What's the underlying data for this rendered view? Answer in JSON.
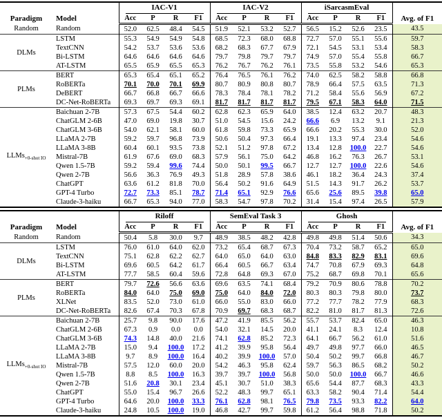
{
  "colors": {
    "best_llm_blue": "#0000EE",
    "avg_column_bg": "#e9f2ca",
    "text": "#000000"
  },
  "columns": {
    "paradigm": "Paradigm",
    "model": "Model",
    "avg": "Avg. of F1",
    "subcols": [
      "Acc",
      "P",
      "R",
      "F1"
    ]
  },
  "tables": [
    {
      "name": "results-table-iac",
      "datasets": [
        "IAC-V1",
        "IAC-V2",
        "iSarcasmEval"
      ],
      "sections": [
        {
          "paradigm": "Random",
          "sub": "",
          "rows": [
            {
              "model": "Random",
              "cells": [
                "52.0",
                "62.5",
                "48.4",
                "54.5",
                "51.9",
                "52.1",
                "53.2",
                "52.7",
                "56.5",
                "15.2",
                "52.6",
                "23.5",
                "43.5"
              ]
            }
          ]
        },
        {
          "paradigm": "DLMs",
          "sub": "",
          "rows": [
            {
              "model": "LSTM",
              "cells": [
                "55.3",
                "54.9",
                "54.9",
                "54.8",
                "68.5",
                "72.3",
                "68.0",
                "68.8",
                "72.7",
                "57.0",
                "55.1",
                "55.6",
                "59.7"
              ]
            },
            {
              "model": "TextCNN",
              "cells": [
                "54.2",
                "53.7",
                "53.6",
                "53.6",
                "68.2",
                "68.3",
                "67.7",
                "67.9",
                "72.1",
                "54.5",
                "53.1",
                "53.4",
                "58.3"
              ]
            },
            {
              "model": "Bi-LSTM",
              "cells": [
                "64.6",
                "64.6",
                "64.6",
                "64.6",
                "79.7",
                "79.8",
                "79.7",
                "79.7",
                "74.9",
                "57.0",
                "55.4",
                "55.8",
                "66.7"
              ]
            },
            {
              "model": "AT-LSTM",
              "cells": [
                "65.5",
                "65.9",
                "65.5",
                "65.3",
                "76.2",
                "76.7",
                "76.2",
                "76.1",
                "73.5",
                "55.8",
                "53.2",
                "54.6",
                "65.3"
              ]
            }
          ]
        },
        {
          "paradigm": "PLMs",
          "sub": "",
          "rows": [
            {
              "model": "BERT",
              "cells": [
                "65.3",
                "65.4",
                "65.1",
                "65.2",
                "76.4",
                "76.5",
                "76.1",
                "76.2",
                "74.0",
                "62.5",
                "58.2",
                "58.8",
                "66.8"
              ]
            },
            {
              "model": "RoBERTa",
              "cells": [
                "b:70.1",
                "b:70.0",
                "b:70.1",
                "b:69.9",
                "80.7",
                "80.9",
                "80.8",
                "80.7",
                "78.9",
                "66.4",
                "57.5",
                "63.5",
                "71.3"
              ]
            },
            {
              "model": "DeBERT",
              "cells": [
                "66.7",
                "66.8",
                "66.7",
                "66.6",
                "78.3",
                "78.4",
                "78.1",
                "78.2",
                "71.2",
                "58.4",
                "55.6",
                "56.9",
                "67.2"
              ]
            },
            {
              "model": "DC-Net-RoBERTa",
              "cells": [
                "69.3",
                "69.7",
                "69.3",
                "69.1",
                "b:81.7",
                "b:81.7",
                "b:81.7",
                "b:81.7",
                "b:79.5",
                "b:67.1",
                "b:58.3",
                "b:64.0",
                "b:71.5"
              ]
            }
          ]
        },
        {
          "paradigm": "LLMs",
          "sub": "+0-shot IO",
          "rows": [
            {
              "model": "Baichuan 2-7B",
              "cells": [
                "57.3",
                "67.5",
                "54.4",
                "60.2",
                "62.8",
                "62.3",
                "65.9",
                "64.0",
                "38.5",
                "12.4",
                "63.2",
                "20.7",
                "48.3"
              ]
            },
            {
              "model": "ChatGLM 2-6B",
              "cells": [
                "47.0",
                "69.0",
                "19.8",
                "30.7",
                "51.0",
                "54.5",
                "15.6",
                "24.2",
                "u:66.6",
                "6.9",
                "13.2",
                "9.1",
                "21.3"
              ]
            },
            {
              "model": "ChatGLM 3-6B",
              "cells": [
                "54.0",
                "62.1",
                "58.1",
                "60.0",
                "61.8",
                "59.8",
                "73.3",
                "65.9",
                "66.6",
                "20.2",
                "55.3",
                "30.0",
                "52.0"
              ]
            },
            {
              "model": "LLaMA 2-7B",
              "cells": [
                "59.2",
                "59.7",
                "96.8",
                "73.9",
                "50.6",
                "50.4",
                "97.3",
                "66.4",
                "19.1",
                "13.3",
                "97.4",
                "23.4",
                "54.6"
              ]
            },
            {
              "model": "LLaMA 3-8B",
              "cells": [
                "60.4",
                "60.1",
                "93.5",
                "73.8",
                "52.1",
                "51.2",
                "97.8",
                "67.2",
                "13.4",
                "12.8",
                "u:100.0",
                "22.7",
                "54.6"
              ]
            },
            {
              "model": "Mistral-7B",
              "cells": [
                "61.9",
                "67.6",
                "69.0",
                "68.3",
                "57.9",
                "56.1",
                "75.0",
                "64.2",
                "46.8",
                "16.2",
                "76.3",
                "26.7",
                "53.1"
              ]
            },
            {
              "model": "Qwen 1.5-7B",
              "cells": [
                "59.2",
                "59.4",
                "u:99.6",
                "74.4",
                "50.0",
                "50.1",
                "u:99.5",
                "66.7",
                "12.7",
                "12.7",
                "u:100.0",
                "22.6",
                "54.6"
              ]
            },
            {
              "model": "Qwen 2-7B",
              "cells": [
                "56.6",
                "36.3",
                "76.9",
                "49.3",
                "51.8",
                "28.9",
                "57.8",
                "38.6",
                "46.1",
                "18.2",
                "36.4",
                "24.3",
                "37.4"
              ]
            },
            {
              "model": "ChatGPT",
              "cells": [
                "63.6",
                "61.2",
                "81.8",
                "70.0",
                "56.4",
                "50.2",
                "91.6",
                "64.9",
                "51.5",
                "14.3",
                "91.7",
                "26.2",
                "53.7"
              ]
            },
            {
              "model": "GPT-4 Turbo",
              "cells": [
                "u:72.7",
                "u:73.3",
                "85.1",
                "u:78.7",
                "u:71.4",
                "u:65.1",
                "92.9",
                "u:76.6",
                "65.6",
                "u:25.6",
                "89.5",
                "u:39.8",
                "u:65.0"
              ]
            },
            {
              "model": "Claude-3-haiku",
              "cells": [
                "66.7",
                "65.3",
                "94.0",
                "77.0",
                "58.3",
                "54.7",
                "97.8",
                "70.2",
                "31.4",
                "15.4",
                "97.4",
                "26.5",
                "57.9"
              ]
            }
          ]
        }
      ]
    },
    {
      "name": "results-table-riloff",
      "datasets": [
        "Riloff",
        "SemEval Task 3",
        "Ghosh"
      ],
      "sections": [
        {
          "paradigm": "Random",
          "sub": "",
          "rows": [
            {
              "model": "Random",
              "cells": [
                "50.4",
                "5.8",
                "30.0",
                "9.7",
                "48.9",
                "38.5",
                "48.2",
                "42.8",
                "49.8",
                "49.8",
                "51.4",
                "50.6",
                "34.3"
              ]
            }
          ]
        },
        {
          "paradigm": "DLMs",
          "sub": "",
          "rows": [
            {
              "model": "LSTM",
              "cells": [
                "76.0",
                "61.0",
                "64.0",
                "62.0",
                "73.2",
                "65.4",
                "68.7",
                "67.3",
                "70.4",
                "73.2",
                "58.7",
                "65.2",
                "65.0"
              ]
            },
            {
              "model": "TextCNN",
              "cells": [
                "75.1",
                "62.8",
                "62.2",
                "62.7",
                "64.0",
                "65.0",
                "64.0",
                "63.0",
                "b:84.8",
                "b:83.3",
                "b:82.9",
                "b:83.1",
                "69.6"
              ]
            },
            {
              "model": "Bi-LSTM",
              "cells": [
                "69.6",
                "60.5",
                "64.2",
                "61.7",
                "66.4",
                "60.5",
                "66.7",
                "63.4",
                "74.7",
                "70.8",
                "67.9",
                "69.3",
                "64.8"
              ]
            },
            {
              "model": "AT-LSTM",
              "cells": [
                "77.7",
                "58.5",
                "60.4",
                "59.6",
                "72.8",
                "64.8",
                "69.3",
                "67.0",
                "75.2",
                "68.7",
                "69.8",
                "70.1",
                "65.6"
              ]
            }
          ]
        },
        {
          "paradigm": "PLMs",
          "sub": "",
          "rows": [
            {
              "model": "BERT",
              "cells": [
                "79.7",
                "b:72.6",
                "56.6",
                "63.6",
                "69.6",
                "63.5",
                "74.1",
                "68.4",
                "79.2",
                "70.9",
                "80.6",
                "78.8",
                "70.2"
              ]
            },
            {
              "model": "RoBERTa",
              "cells": [
                "b:84.0",
                "64.0",
                "b:75.0",
                "b:69.0",
                "b:75.0",
                "64.0",
                "b:84.0",
                "b:72.0",
                "80.3",
                "80.3",
                "79.8",
                "80.0",
                "b:73.7"
              ]
            },
            {
              "model": "XLNet",
              "cells": [
                "83.5",
                "52.0",
                "73.0",
                "61.0",
                "66.0",
                "55.0",
                "83.0",
                "66.0",
                "77.2",
                "77.7",
                "78.2",
                "77.9",
                "68.3"
              ]
            },
            {
              "model": "DC-Net-RoBERTa",
              "cells": [
                "82.6",
                "67.4",
                "70.3",
                "67.8",
                "70.9",
                "b:69.7",
                "68.3",
                "68.7",
                "82.2",
                "81.0",
                "81.7",
                "81.3",
                "72.6"
              ]
            }
          ]
        },
        {
          "paradigm": "LLMs",
          "sub": "+0-shot IO",
          "rows": [
            {
              "model": "Baichuan 2-7B",
              "cells": [
                "25.7",
                "9.8",
                "90.0",
                "17.6",
                "47.2",
                "41.9",
                "85.5",
                "56.2",
                "55.7",
                "53.7",
                "82.4",
                "65.0",
                "46.3"
              ]
            },
            {
              "model": "ChatGLM 2-6B",
              "cells": [
                "67.3",
                "0.9",
                "0.0",
                "0.0",
                "54.0",
                "32.1",
                "14.5",
                "20.0",
                "41.1",
                "24.1",
                "8.3",
                "12.4",
                "10.8"
              ]
            },
            {
              "model": "ChatGLM 3-6B",
              "cells": [
                "u:74.3",
                "14.8",
                "40.0",
                "21.6",
                "74.1",
                "u:62.8",
                "85.2",
                "72.3",
                "64.1",
                "66.7",
                "56.2",
                "61.0",
                "51.6"
              ]
            },
            {
              "model": "LLaMA 2-7B",
              "cells": [
                "15.0",
                "9.4",
                "u:100.0",
                "17.2",
                "41.2",
                "39.9",
                "95.8",
                "56.4",
                "49.7",
                "49.8",
                "97.7",
                "66.0",
                "46.5"
              ]
            },
            {
              "model": "LLaMA 3-8B",
              "cells": [
                "9.7",
                "8.9",
                "u:100.0",
                "16.4",
                "40.2",
                "39.9",
                "u:100.0",
                "57.0",
                "50.4",
                "50.2",
                "99.7",
                "66.8",
                "46.7"
              ]
            },
            {
              "model": "Mistral-7B",
              "cells": [
                "57.5",
                "12.0",
                "60.0",
                "20.0",
                "54.2",
                "46.3",
                "95.8",
                "62.4",
                "59.7",
                "56.3",
                "86.5",
                "68.2",
                "50.2"
              ]
            },
            {
              "model": "Qwen 1.5-7B",
              "cells": [
                "8.8",
                "8.5",
                "u:100.0",
                "16.3",
                "39.7",
                "39.7",
                "u:100.0",
                "56.8",
                "50.0",
                "50.0",
                "u:100.0",
                "66.7",
                "46.6"
              ]
            },
            {
              "model": "Qwen 2-7B",
              "cells": [
                "51.6",
                "u:20.8",
                "30.1",
                "23.4",
                "45.1",
                "30.7",
                "51.0",
                "38.3",
                "65.6",
                "54.4",
                "87.7",
                "68.3",
                "43.3"
              ]
            },
            {
              "model": "ChatGPT",
              "cells": [
                "55.0",
                "15.4",
                "96.7",
                "26.6",
                "52.2",
                "48.3",
                "99.7",
                "65.1",
                "63.3",
                "58.2",
                "90.4",
                "71.4",
                "54.4"
              ]
            },
            {
              "model": "GPT-4 Turbo",
              "cells": [
                "64.6",
                "20.0",
                "u:100.0",
                "u:33.3",
                "u:76.1",
                "u:62.8",
                "98.1",
                "u:76.5",
                "u:79.8",
                "u:73.5",
                "93.3",
                "u:82.2",
                "u:64.0"
              ]
            },
            {
              "model": "Claude-3-haiku",
              "cells": [
                "24.8",
                "10.5",
                "u:100.0",
                "19.0",
                "46.8",
                "42.7",
                "99.7",
                "59.8",
                "61.2",
                "56.4",
                "98.8",
                "71.8",
                "50.2"
              ]
            }
          ]
        }
      ]
    }
  ]
}
